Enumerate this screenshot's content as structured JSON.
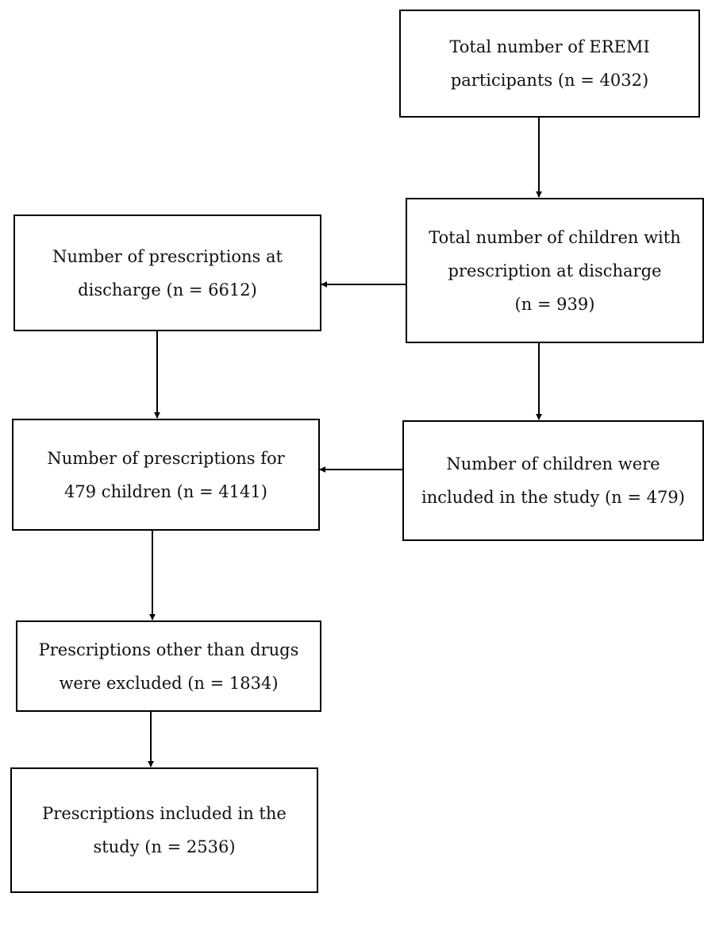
{
  "flowchart": {
    "total_eremi": {
      "line1": "Total number of EREMI",
      "line2": "participants (n = 4032)"
    },
    "children_with_prescription": {
      "line1": "Total number of children with",
      "line2": "prescription at discharge",
      "line3": "(n = 939)"
    },
    "prescriptions_at_discharge": {
      "line1": "Number of prescriptions at",
      "line2": "discharge (n = 6612)"
    },
    "children_included": {
      "line1": "Number of children were",
      "line2": "included in the study (n = 479)"
    },
    "prescriptions_479": {
      "line1": "Number of prescriptions for",
      "line2": "479 children (n = 4141)"
    },
    "other_excluded": {
      "line1": "Prescriptions other than drugs",
      "line2": "were excluded (n = 1834)"
    },
    "included_prescriptions": {
      "line1": "Prescriptions included in the",
      "line2": "study (n = 2536)"
    }
  },
  "colors": {
    "stroke": "#000000",
    "background": "#ffffff"
  }
}
